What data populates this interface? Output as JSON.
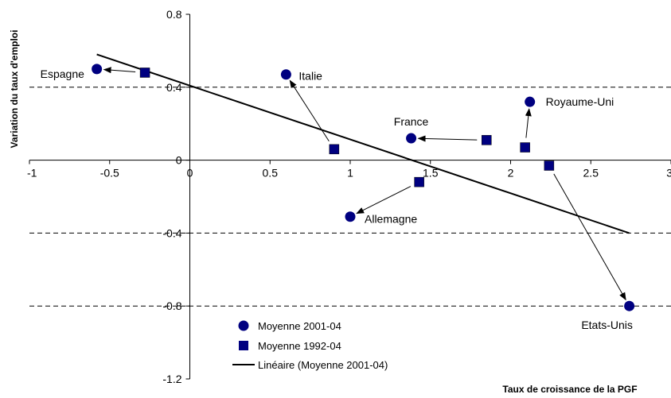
{
  "chart_data": {
    "type": "scatter",
    "xlabel": "Taux de croissance de la PGF",
    "ylabel": "Variation du taux d'emploi",
    "xlim": [
      -1,
      3
    ],
    "ylim": [
      -1.2,
      0.8
    ],
    "x_ticks": [
      "-1",
      "-0.5",
      "0",
      "0.5",
      "1",
      "1.5",
      "2",
      "2.5",
      "3"
    ],
    "y_ticks": [
      "0.8",
      "0.4",
      "0",
      "-0.4",
      "-0.8",
      "-1.2"
    ],
    "dashed_gridlines_y": [
      0.4,
      -0.4,
      -0.8
    ],
    "legend_position": "bottom-left",
    "colors": {
      "marker": "#000080",
      "line": "#000000",
      "grid": "#000000"
    },
    "series": [
      {
        "name": "Moyenne 2001-04",
        "marker": "circle",
        "points": [
          {
            "label": "Espagne",
            "x": -0.58,
            "y": 0.5
          },
          {
            "label": "Italie",
            "x": 0.6,
            "y": 0.47
          },
          {
            "label": "France",
            "x": 1.38,
            "y": 0.12
          },
          {
            "label": "Royaume-Uni",
            "x": 2.12,
            "y": 0.32
          },
          {
            "label": "Allemagne",
            "x": 1.0,
            "y": -0.31
          },
          {
            "label": "Etats-Unis",
            "x": 2.74,
            "y": -0.8
          }
        ]
      },
      {
        "name": "Moyenne 1992-04",
        "marker": "square",
        "points": [
          {
            "label": "Espagne",
            "x": -0.28,
            "y": 0.48
          },
          {
            "label": "Italie",
            "x": 0.9,
            "y": 0.06
          },
          {
            "label": "France",
            "x": 1.85,
            "y": 0.11
          },
          {
            "label": "Royaume-Uni",
            "x": 2.09,
            "y": 0.07
          },
          {
            "label": "Allemagne",
            "x": 1.43,
            "y": -0.12
          },
          {
            "label": "Etats-Unis",
            "x": 2.24,
            "y": -0.03
          }
        ]
      },
      {
        "name": "Linéaire (Moyenne 2001-04)",
        "type": "trendline",
        "x": [
          -0.58,
          2.74
        ],
        "y": [
          0.58,
          -0.4
        ]
      }
    ]
  }
}
